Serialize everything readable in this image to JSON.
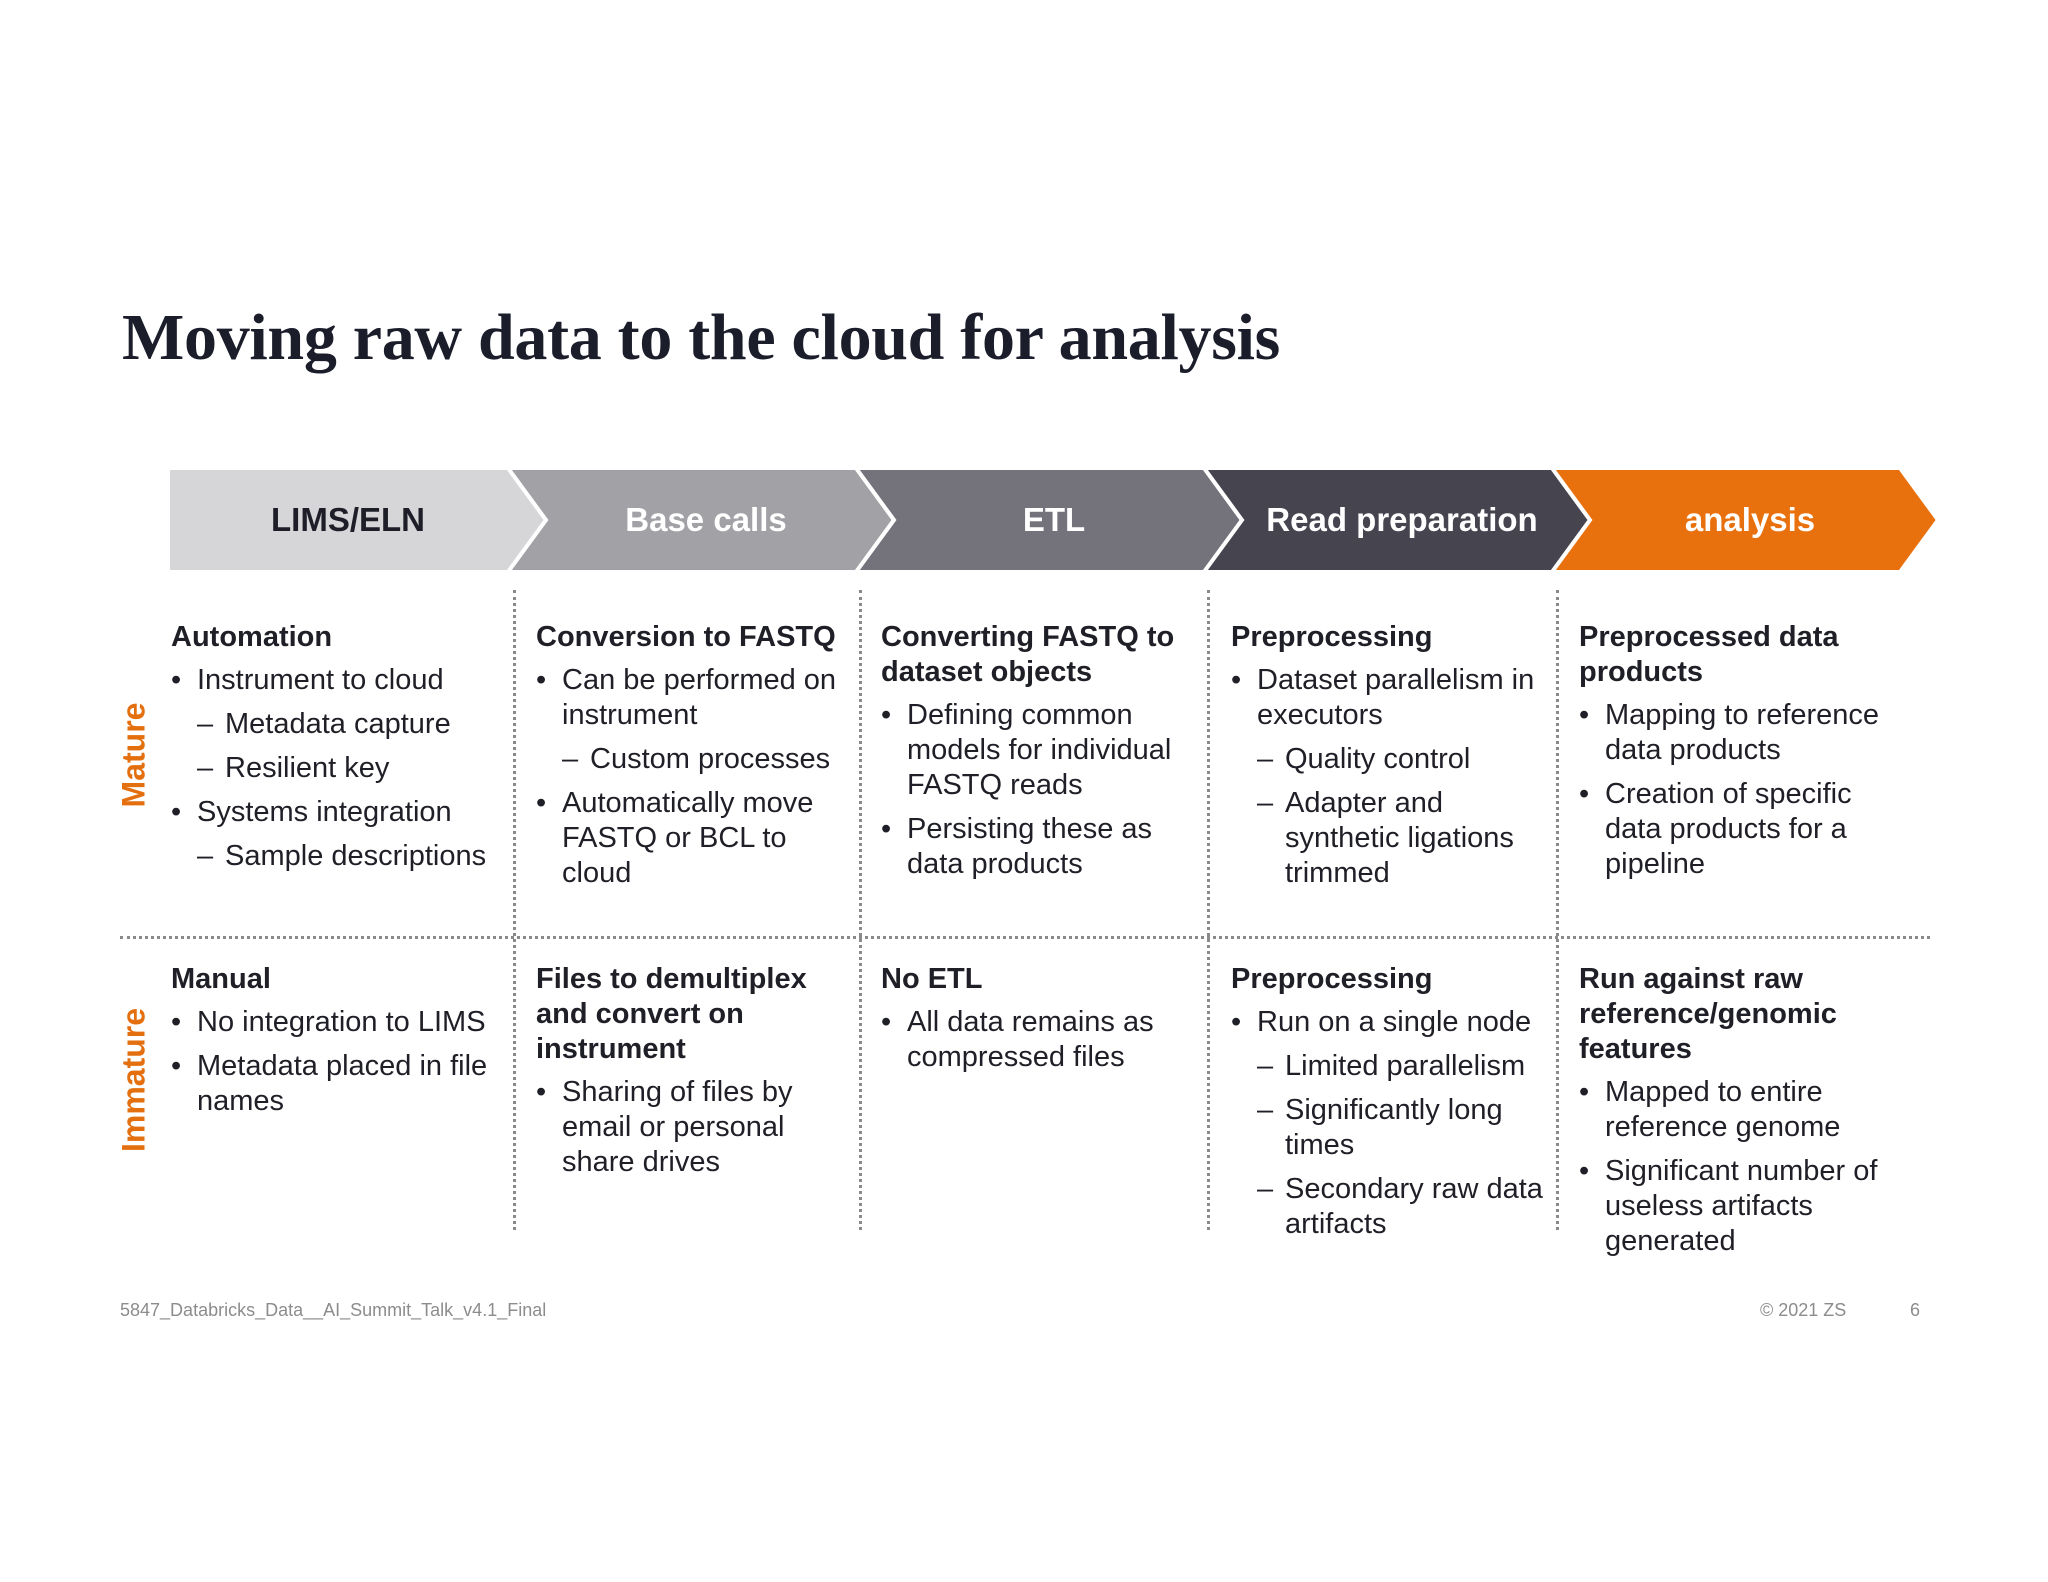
{
  "slide": {
    "title": "Moving raw data to the cloud for analysis"
  },
  "colors": {
    "step1": "#d6d6d8",
    "step2": "#a2a2a6",
    "step3": "#74737c",
    "step4": "#45444f",
    "step5": "#e8710e",
    "accent": "#e46f0f"
  },
  "steps": [
    {
      "label": "LIMS/ELN"
    },
    {
      "label": "Base calls"
    },
    {
      "label": "ETL"
    },
    {
      "label": "Read preparation"
    },
    {
      "label": "analysis"
    }
  ],
  "rows": [
    {
      "label": "Mature"
    },
    {
      "label": "Immature"
    }
  ],
  "cells": {
    "mature": [
      {
        "heading": "Automation",
        "items": [
          {
            "t": "Instrument to cloud",
            "sub": false
          },
          {
            "t": "Metadata capture",
            "sub": true
          },
          {
            "t": "Resilient key",
            "sub": true
          },
          {
            "t": "Systems integration",
            "sub": false
          },
          {
            "t": "Sample descriptions",
            "sub": true
          }
        ]
      },
      {
        "heading": "Conversion to FASTQ",
        "items": [
          {
            "t": "Can be performed on instrument",
            "sub": false
          },
          {
            "t": "Custom processes",
            "sub": true
          },
          {
            "t": "Automatically move FASTQ or BCL to cloud",
            "sub": false
          }
        ]
      },
      {
        "heading": "Converting FASTQ to dataset objects",
        "items": [
          {
            "t": "Defining common models for individual FASTQ reads",
            "sub": false
          },
          {
            "t": "Persisting these as data products",
            "sub": false
          }
        ]
      },
      {
        "heading": "Preprocessing",
        "items": [
          {
            "t": "Dataset parallelism in executors",
            "sub": false
          },
          {
            "t": "Quality control",
            "sub": true
          },
          {
            "t": "Adapter and synthetic ligations trimmed",
            "sub": true
          }
        ]
      },
      {
        "heading": "Preprocessed data products",
        "items": [
          {
            "t": "Mapping to reference data products",
            "sub": false
          },
          {
            "t": "Creation of specific data products for a pipeline",
            "sub": false
          }
        ]
      }
    ],
    "immature": [
      {
        "heading": "Manual",
        "items": [
          {
            "t": "No integration to LIMS",
            "sub": false
          },
          {
            "t": "Metadata placed in file names",
            "sub": false
          }
        ]
      },
      {
        "heading": "Files to demultiplex and convert on instrument",
        "items": [
          {
            "t": "Sharing of files by email or personal share drives",
            "sub": false
          }
        ]
      },
      {
        "heading": "No ETL",
        "items": [
          {
            "t": "All data remains as compressed files",
            "sub": false
          }
        ]
      },
      {
        "heading": "Preprocessing",
        "items": [
          {
            "t": "Run on a single node",
            "sub": false
          },
          {
            "t": "Limited parallelism",
            "sub": true
          },
          {
            "t": "Significantly long times",
            "sub": true
          },
          {
            "t": "Secondary raw data artifacts",
            "sub": true
          }
        ]
      },
      {
        "heading": "Run against raw reference/genomic features",
        "items": [
          {
            "t": "Mapped to entire reference genome",
            "sub": false
          },
          {
            "t": "Significant number of useless artifacts generated",
            "sub": false
          }
        ]
      }
    ]
  },
  "footer": {
    "doc_name": "5847_Databricks_Data__AI_Summit_Talk_v4.1_Final",
    "copyright": "© 2021 ZS",
    "page_number": "6"
  }
}
